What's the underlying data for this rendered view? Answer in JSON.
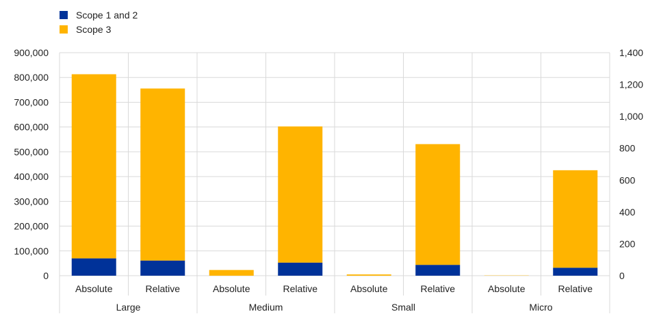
{
  "chart_data": {
    "type": "bar",
    "stacked": true,
    "groups": [
      "Large",
      "Medium",
      "Small",
      "Micro"
    ],
    "subcategories": [
      "Absolute",
      "Relative"
    ],
    "axes": {
      "Absolute": "left",
      "Relative": "right"
    },
    "left_axis": {
      "ylim": [
        0,
        900000
      ],
      "ticks": [
        "0",
        "100,000",
        "200,000",
        "300,000",
        "400,000",
        "500,000",
        "600,000",
        "700,000",
        "800,000",
        "900,000"
      ]
    },
    "right_axis": {
      "ylim": [
        0,
        1400
      ],
      "ticks": [
        "0",
        "200",
        "400",
        "600",
        "800",
        "1,000",
        "1,200",
        "1,400"
      ]
    },
    "series": [
      {
        "name": "Scope 1 and 2",
        "color": "#003299",
        "absolute": [
          70000,
          0,
          0,
          0
        ],
        "relative": [
          95,
          82,
          68,
          50
        ]
      },
      {
        "name": "Scope 3",
        "color": "#FFB400",
        "absolute": [
          743000,
          23000,
          5000,
          1000
        ],
        "relative": [
          1080,
          855,
          758,
          612
        ]
      }
    ],
    "grid": true,
    "legend_position": "top-left"
  }
}
